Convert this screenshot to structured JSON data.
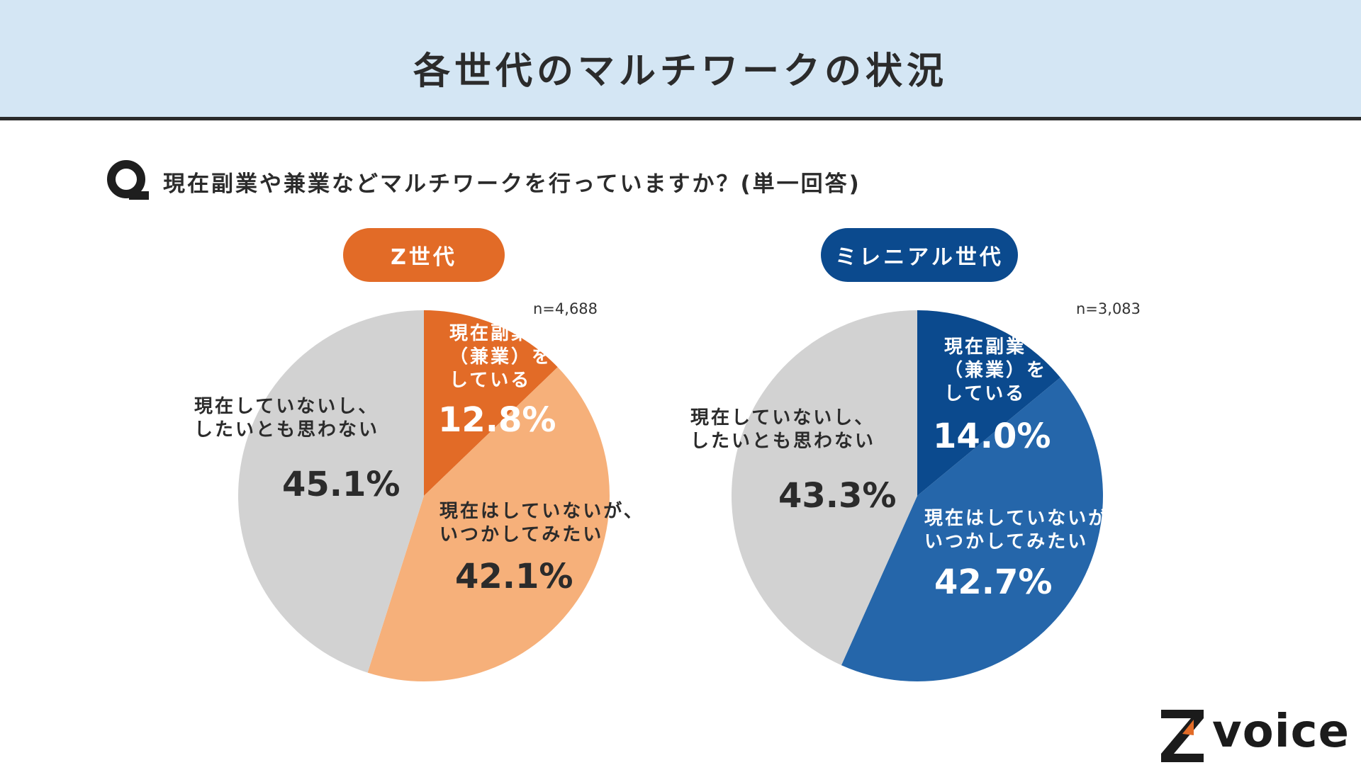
{
  "header": {
    "title": "各世代のマルチワークの状況"
  },
  "question": {
    "icon": "q-icon",
    "text": "現在副業や兼業などマルチワークを行っていますか？(単一回答)"
  },
  "chart_data": [
    {
      "type": "pie",
      "title": "Z世代",
      "n_label": "n=4,688",
      "slices": [
        {
          "label_lines": [
            "現在副業",
            "（兼業）を",
            "している"
          ],
          "value": 12.8,
          "display": "12.8%",
          "color": "#e26b27"
        },
        {
          "label_lines": [
            "現在はしていないが、",
            "いつかしてみたい"
          ],
          "value": 42.1,
          "display": "42.1%",
          "color": "#f6b07a"
        },
        {
          "label_lines": [
            "現在していないし、",
            "したいとも思わない"
          ],
          "value": 45.1,
          "display": "45.1%",
          "color": "#d2d2d2"
        }
      ]
    },
    {
      "type": "pie",
      "title": "ミレニアル世代",
      "n_label": "n=3,083",
      "slices": [
        {
          "label_lines": [
            "現在副業",
            "（兼業）を",
            "している"
          ],
          "value": 14.0,
          "display": "14.0%",
          "color": "#0b4a8e"
        },
        {
          "label_lines": [
            "現在はしていないが、",
            "いつかしてみたい"
          ],
          "value": 42.7,
          "display": "42.7%",
          "color": "#2566aa"
        },
        {
          "label_lines": [
            "現在していないし、",
            "したいとも思わない"
          ],
          "value": 43.3,
          "display": "43.3%",
          "color": "#d2d2d2"
        }
      ]
    }
  ],
  "logo": {
    "text": "voice",
    "mark_icon": "z-logo-icon"
  }
}
